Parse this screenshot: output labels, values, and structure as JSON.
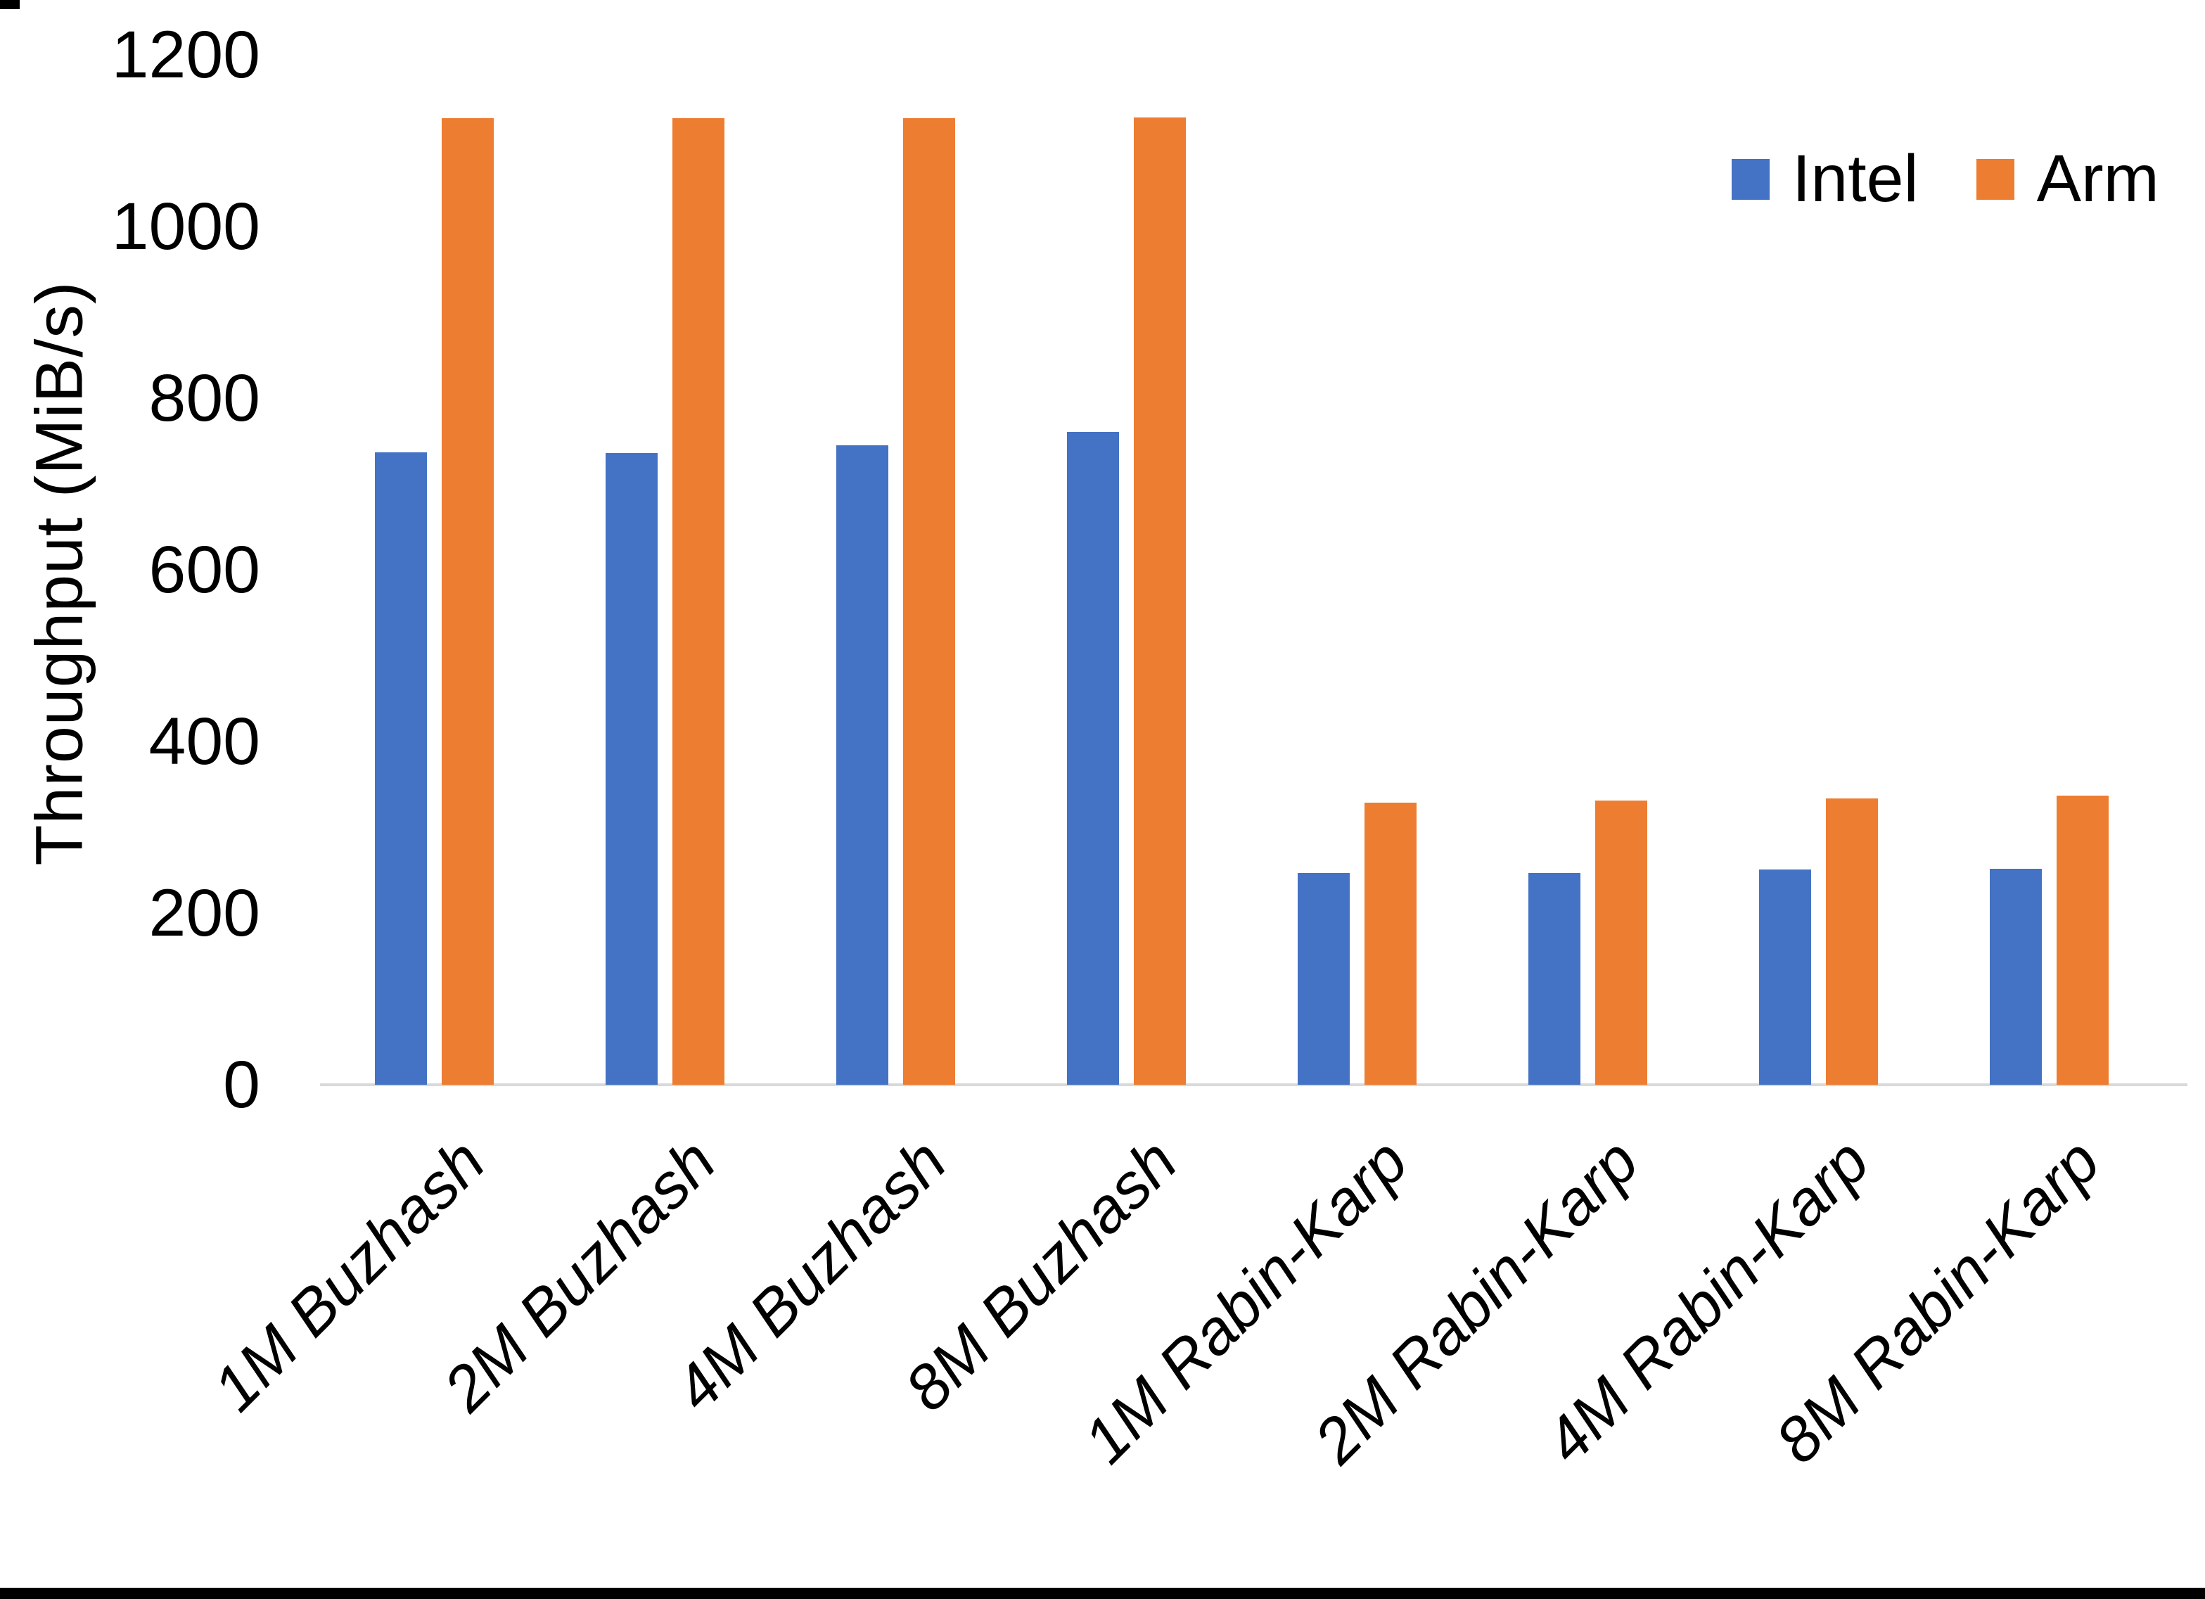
{
  "chart_data": {
    "type": "bar",
    "title": "",
    "categories": [
      "1M Buzhash",
      "2M Buzhash",
      "4M Buzhash",
      "8M Buzhash",
      "1M Rabin-Karp",
      "2M Rabin-Karp",
      "4M Rabin-Karp",
      "8M Rabin-Karp"
    ],
    "series": [
      {
        "name": "Intel",
        "color": "#4472C4",
        "values": [
          737,
          736,
          745,
          761,
          247,
          247,
          251,
          252
        ]
      },
      {
        "name": "Arm",
        "color": "#ED7D31",
        "values": [
          1126,
          1126,
          1126,
          1127,
          329,
          331,
          334,
          337
        ]
      }
    ],
    "xlabel": "",
    "ylabel": "Throughput (MiB/s)",
    "ylim": [
      0,
      1200
    ],
    "yticks": [
      0,
      200,
      400,
      600,
      800,
      1000,
      1200
    ],
    "grid": false,
    "legend_position": "top-right",
    "axis_line_color": "#D9D9D9",
    "text_color": "#000000",
    "background_color": "#FFFFFF"
  }
}
